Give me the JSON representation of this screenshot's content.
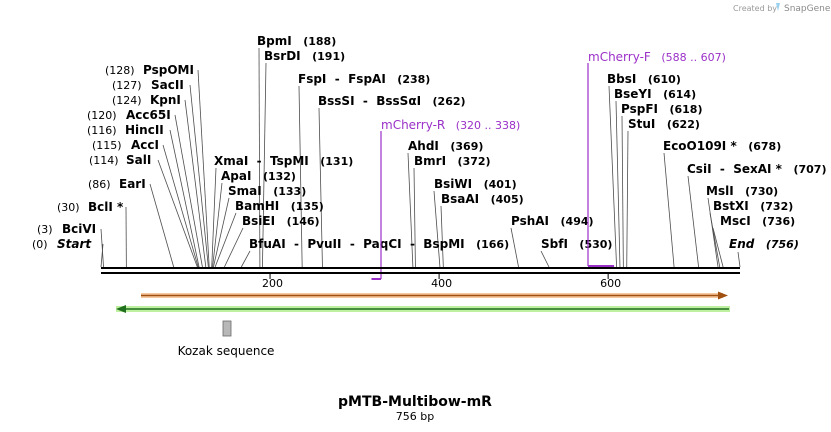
{
  "credit": {
    "prefix": "Created by",
    "brand": "SnapGene"
  },
  "map": {
    "title": "pMTB-Multibow-mR",
    "length_label": "756 bp",
    "length_bp": 756
  },
  "ticks": [
    {
      "pos": 200,
      "label": "200"
    },
    {
      "pos": 400,
      "label": "400"
    },
    {
      "pos": 600,
      "label": "600"
    }
  ],
  "enzymes": [
    {
      "id": "start",
      "name": "Start",
      "pos_label": "(0)",
      "bp": 0,
      "italic": true
    },
    {
      "id": "bcivi",
      "name": "BciVI",
      "pos_label": "(3)",
      "bp": 3
    },
    {
      "id": "bcli",
      "name": "BclI *",
      "pos_label": "(30)",
      "bp": 30
    },
    {
      "id": "eari",
      "name": "EarI",
      "pos_label": "(86)",
      "bp": 86
    },
    {
      "id": "sali",
      "name": "SalI",
      "pos_label": "(114)",
      "bp": 114
    },
    {
      "id": "acci",
      "name": "AccI",
      "pos_label": "(115)",
      "bp": 115
    },
    {
      "id": "hincii",
      "name": "HincII",
      "pos_label": "(116)",
      "bp": 116
    },
    {
      "id": "acc65i",
      "name": "Acc65I",
      "pos_label": "(120)",
      "bp": 120
    },
    {
      "id": "kpni",
      "name": "KpnI",
      "pos_label": "(124)",
      "bp": 124
    },
    {
      "id": "sacii",
      "name": "SacII",
      "pos_label": "(127)",
      "bp": 127
    },
    {
      "id": "psppomi",
      "name": "PspOMI",
      "pos_label": "(128)",
      "bp": 128
    },
    {
      "id": "xmai",
      "name": "XmaI",
      "sep": "-",
      "name2": "TspMI",
      "pos_label": "(131)",
      "bp": 131
    },
    {
      "id": "apai",
      "name": "ApaI",
      "pos_label": "(132)",
      "bp": 132
    },
    {
      "id": "smai",
      "name": "SmaI",
      "pos_label": "(133)",
      "bp": 133
    },
    {
      "id": "bamhi",
      "name": "BamHI",
      "pos_label": "(135)",
      "bp": 135
    },
    {
      "id": "bsiei",
      "name": "BsiEI",
      "pos_label": "(146)",
      "bp": 146
    },
    {
      "id": "bfuai",
      "name": "BfuAI",
      "sep": "-",
      "name2": "PvuII",
      "sep2": "-",
      "name3": "PaqCI",
      "sep3": "-",
      "name4": "BspMI",
      "pos_label": "(166)",
      "bp": 166
    },
    {
      "id": "bpmi",
      "name": "BpmI",
      "pos_label": "(188)",
      "bp": 188
    },
    {
      "id": "bsrdi",
      "name": "BsrDI",
      "pos_label": "(191)",
      "bp": 191
    },
    {
      "id": "fspi",
      "name": "FspI",
      "sep": "-",
      "name2": "FspAI",
      "pos_label": "(238)",
      "bp": 238
    },
    {
      "id": "bsssi",
      "name": "BssSI",
      "sep": "-",
      "name2": "BssSαI",
      "pos_label": "(262)",
      "bp": 262
    },
    {
      "id": "ahdi",
      "name": "AhdI",
      "pos_label": "(369)",
      "bp": 369
    },
    {
      "id": "bmri",
      "name": "BmrI",
      "pos_label": "(372)",
      "bp": 372
    },
    {
      "id": "bsiwi",
      "name": "BsiWI",
      "pos_label": "(401)",
      "bp": 401
    },
    {
      "id": "bsaai",
      "name": "BsaAI",
      "pos_label": "(405)",
      "bp": 405
    },
    {
      "id": "pshai",
      "name": "PshAI",
      "pos_label": "(494)",
      "bp": 494
    },
    {
      "id": "sbfi",
      "name": "SbfI",
      "pos_label": "(530)",
      "bp": 530
    },
    {
      "id": "bbsi",
      "name": "BbsI",
      "pos_label": "(610)",
      "bp": 610
    },
    {
      "id": "bseyi",
      "name": "BseYI",
      "pos_label": "(614)",
      "bp": 614
    },
    {
      "id": "pspfi",
      "name": "PspFI",
      "pos_label": "(618)",
      "bp": 618
    },
    {
      "id": "stui",
      "name": "StuI",
      "pos_label": "(622)",
      "bp": 622
    },
    {
      "id": "eco0109i",
      "name": "EcoO109I *",
      "pos_label": "(678)",
      "bp": 678
    },
    {
      "id": "csii",
      "name": "CsiI",
      "sep": "-",
      "name2": "SexAI *",
      "pos_label": "(707)",
      "bp": 707
    },
    {
      "id": "msli",
      "name": "MslI",
      "pos_label": "(730)",
      "bp": 730
    },
    {
      "id": "bstxi",
      "name": "BstXI",
      "pos_label": "(732)",
      "bp": 732
    },
    {
      "id": "msci",
      "name": "MscI",
      "pos_label": "(736)",
      "bp": 736
    },
    {
      "id": "end",
      "name": "End",
      "pos_label": "(756)",
      "bp": 756,
      "italic": true
    }
  ],
  "primers": [
    {
      "id": "mcherry-r",
      "name": "mCherry-R",
      "range": "(320 .. 338)",
      "start": 320,
      "end": 338,
      "color": "#9b30c8"
    },
    {
      "id": "mcherry-f",
      "name": "mCherry-F",
      "range": "(588 .. 607)",
      "start": 588,
      "end": 607,
      "color": "#9b30c8"
    }
  ],
  "features": [
    {
      "id": "kozak",
      "name": "Kozak sequence",
      "color": "#b8b8b8"
    }
  ],
  "colors": {
    "backbone": "#000000",
    "orange_arrow": "#e07b1a",
    "orange_arrow_fill": "#f7c9a0",
    "green_arrow": "#2f9e2f",
    "green_arrow_fill": "#bff0a0",
    "primer": "#9b30c8"
  }
}
